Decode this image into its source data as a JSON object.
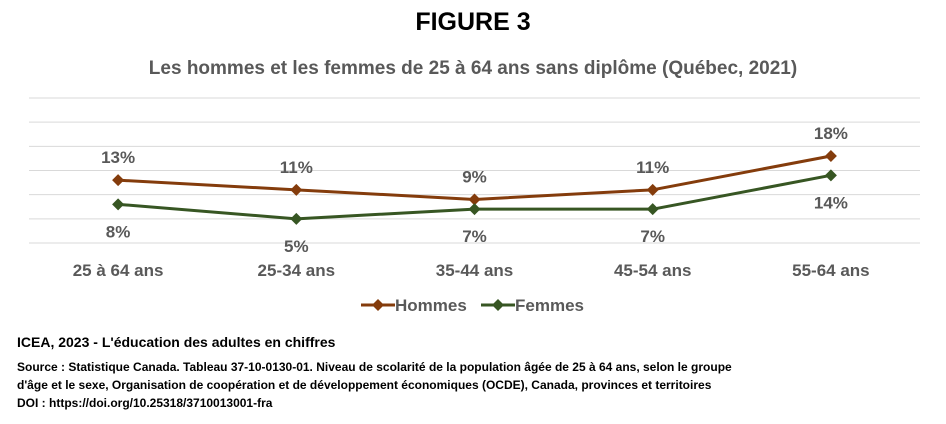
{
  "figure_label": "FIGURE 3",
  "footer": {
    "organization": "ICEA, 2023 - L'éducation des adultes en chiffres",
    "source_line1": "Source : Statistique Canada. Tableau 37-10-0130-01.  Niveau de scolarité de la population âgée de 25 à 64 ans, selon le groupe",
    "source_line2": "d'âge et le sexe, Organisation de coopération et de développement économiques (OCDE), Canada, provinces et territoires",
    "doi": "DOI : https://doi.org/10.25318/3710013001-fra"
  },
  "chart_data": {
    "type": "line",
    "title": "Les hommes et les femmes de 25 à 64 ans sans diplôme (Québec, 2021)",
    "xlabel": "",
    "ylabel": "",
    "categories": [
      "25 à 64 ans",
      "25-34 ans",
      "35-44 ans",
      "45-54 ans",
      "55-64 ans"
    ],
    "series": [
      {
        "name": "Hommes",
        "values": [
          13,
          11,
          9,
          11,
          18
        ],
        "labels": [
          "13%",
          "11%",
          "9%",
          "11%",
          "18%"
        ],
        "label_position": "above",
        "color": "#843C0C"
      },
      {
        "name": "Femmes",
        "values": [
          8,
          5,
          7,
          7,
          14
        ],
        "labels": [
          "8%",
          "5%",
          "7%",
          "7%",
          "14%"
        ],
        "label_position": "below",
        "color": "#375623"
      }
    ],
    "ylim": [
      0,
      30
    ],
    "gridlines": true,
    "y_tick_labels_shown": false,
    "legend_position": "bottom",
    "label_color": "#595959",
    "grid_color": "#d9d9d9"
  }
}
